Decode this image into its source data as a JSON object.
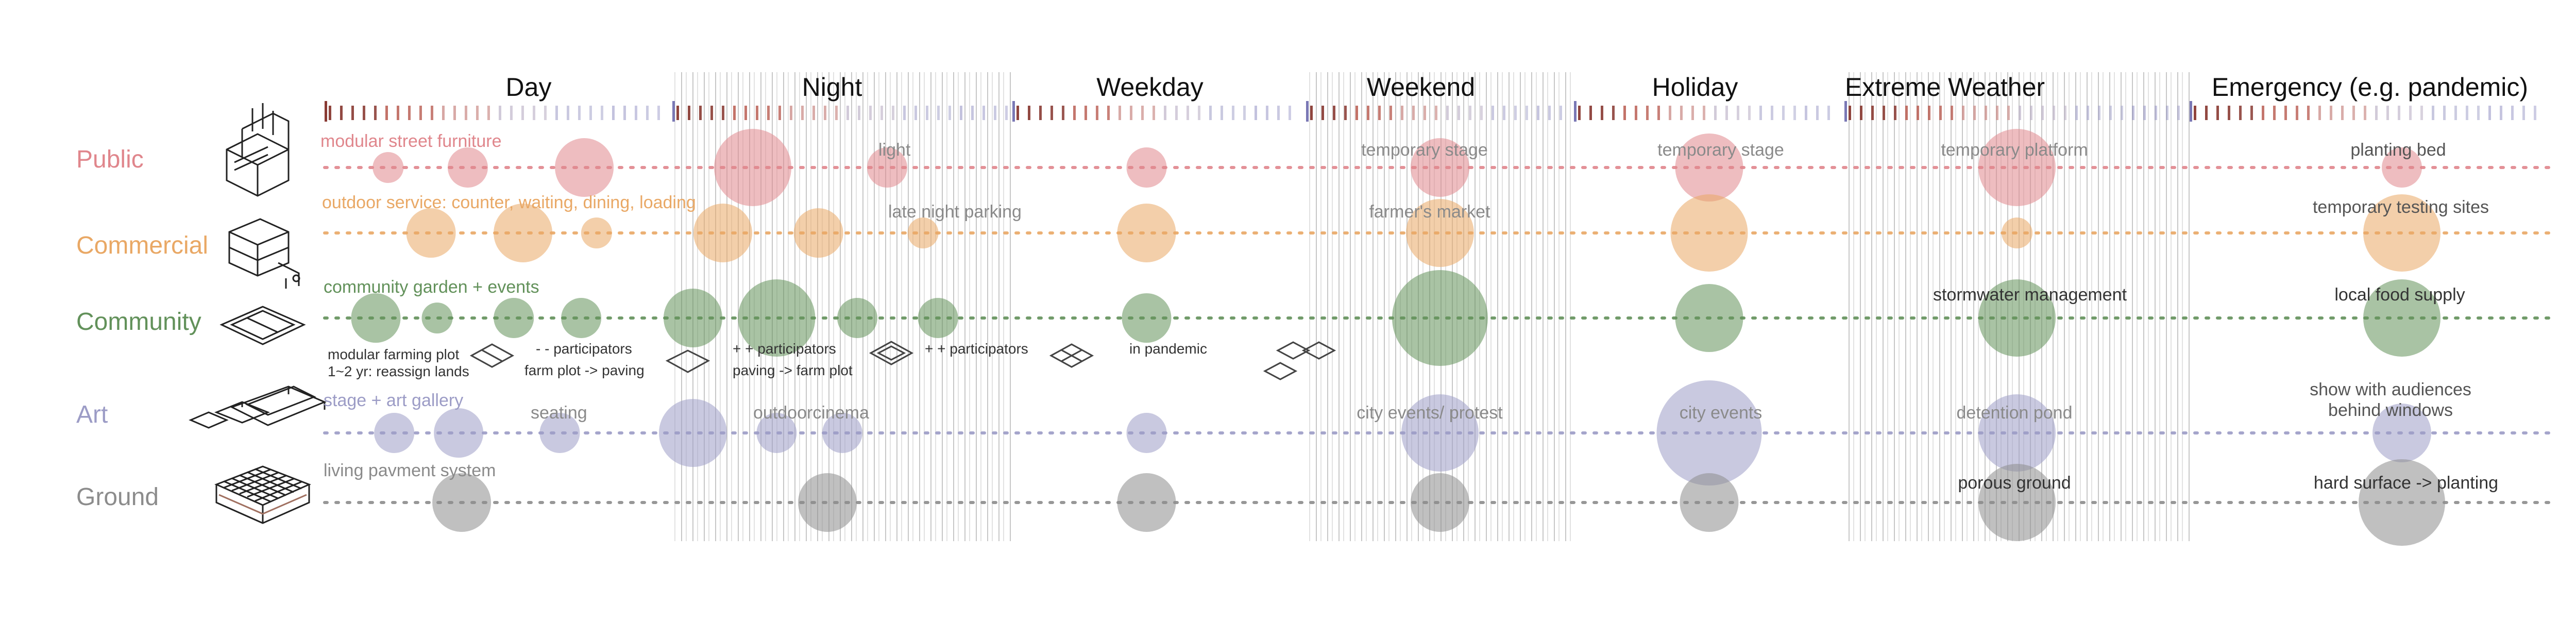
{
  "rows": [
    {
      "id": "public",
      "label": "Public",
      "color": "#e0868c"
    },
    {
      "id": "commercial",
      "label": "Commercial",
      "color": "#e9a865"
    },
    {
      "id": "community",
      "label": "Community",
      "color": "#62915a"
    },
    {
      "id": "art",
      "label": "Art",
      "color": "#9c9cc6"
    },
    {
      "id": "ground",
      "label": "Ground",
      "color": "#8c8c8c"
    }
  ],
  "periods": [
    {
      "id": "day",
      "label": "Day"
    },
    {
      "id": "night",
      "label": "Night"
    },
    {
      "id": "weekday",
      "label": "Weekday"
    },
    {
      "id": "weekend",
      "label": "Weekend"
    },
    {
      "id": "holiday",
      "label": "Holiday"
    },
    {
      "id": "extreme",
      "label": "Extreme Weather"
    },
    {
      "id": "emergency",
      "label": "Emergency (e.g. pandemic)"
    }
  ],
  "annotations": {
    "public_day": "modular street furniture",
    "public_night": "light",
    "public_weekend": "temporary stage",
    "public_holiday": "temporary stage",
    "public_extreme": "temporary platform",
    "public_emergency": "planting bed",
    "commercial_day": "outdoor service: counter, waiting, dining, loading",
    "commercial_night": "late night parking",
    "commercial_weekend": "farmer's market",
    "commercial_emergency": "temporary testing sites",
    "community_day": "community garden + events",
    "community_extreme": "stormwater management",
    "community_emergency": "local food supply",
    "art_day": "stage + art gallery",
    "art_seating": "seating",
    "art_night": "outdoorcinema",
    "art_weekend": "city events/ protest",
    "art_holiday": "city events",
    "art_extreme": "detention pond",
    "art_emergency_1": "show with audiences",
    "art_emergency_2": "behind windows",
    "ground_day": "living pavment system",
    "ground_extreme": "porous ground",
    "ground_emergency": "hard surface -> planting"
  },
  "plot_notes": {
    "plot_1a": "modular farming plot",
    "plot_1b": "1~2 yr: reassign lands",
    "plot_2a": "- - participators",
    "plot_2b": "farm plot -> paving",
    "plot_3a": "+ + participators",
    "plot_3b": "paving -> farm plot",
    "plot_4": "+ + participators",
    "plot_5": "in pandemic"
  },
  "chart_data": {
    "type": "scatter",
    "x_categories": [
      "Day",
      "Night",
      "Weekday",
      "Weekend",
      "Holiday",
      "Extreme Weather",
      "Emergency (e.g. pandemic)"
    ],
    "y_categories": [
      "Public",
      "Commercial",
      "Community",
      "Art",
      "Ground"
    ],
    "series": [
      {
        "name": "Public",
        "points": [
          {
            "period": "Day",
            "pos": 0.14,
            "size": 2
          },
          {
            "period": "Day",
            "pos": 0.4,
            "size": 3
          },
          {
            "period": "Day",
            "pos": 0.78,
            "size": 5
          },
          {
            "period": "Night",
            "pos": 0.2,
            "size": 7
          },
          {
            "period": "Night",
            "pos": 0.65,
            "size": 3
          },
          {
            "period": "Weekday",
            "pos": 0.45,
            "size": 3
          },
          {
            "period": "Weekend",
            "pos": 0.5,
            "size": 5
          },
          {
            "period": "Holiday",
            "pos": 0.5,
            "size": 6
          },
          {
            "period": "Extreme Weather",
            "pos": 0.5,
            "size": 7
          },
          {
            "period": "Emergency (e.g. pandemic)",
            "pos": 0.6,
            "size": 3
          }
        ]
      },
      {
        "name": "Commercial",
        "points": [
          {
            "period": "Day",
            "pos": 0.28,
            "size": 4
          },
          {
            "period": "Day",
            "pos": 0.58,
            "size": 5
          },
          {
            "period": "Day",
            "pos": 0.82,
            "size": 2
          },
          {
            "period": "Night",
            "pos": 0.1,
            "size": 5
          },
          {
            "period": "Night",
            "pos": 0.42,
            "size": 4
          },
          {
            "period": "Night",
            "pos": 0.77,
            "size": 2
          },
          {
            "period": "Weekday",
            "pos": 0.45,
            "size": 5
          },
          {
            "period": "Weekend",
            "pos": 0.5,
            "size": 6
          },
          {
            "period": "Holiday",
            "pos": 0.5,
            "size": 7
          },
          {
            "period": "Extreme Weather",
            "pos": 0.5,
            "size": 2
          },
          {
            "period": "Emergency (e.g. pandemic)",
            "pos": 0.6,
            "size": 7
          }
        ]
      },
      {
        "name": "Community",
        "points": [
          {
            "period": "Day",
            "pos": 0.1,
            "size": 4
          },
          {
            "period": "Day",
            "pos": 0.3,
            "size": 2
          },
          {
            "period": "Day",
            "pos": 0.55,
            "size": 3
          },
          {
            "period": "Day",
            "pos": 0.77,
            "size": 3
          },
          {
            "period": "Night",
            "pos": 0.0,
            "size": 5
          },
          {
            "period": "Night",
            "pos": 0.28,
            "size": 7
          },
          {
            "period": "Night",
            "pos": 0.55,
            "size": 3
          },
          {
            "period": "Night",
            "pos": 0.82,
            "size": 3
          },
          {
            "period": "Weekday",
            "pos": 0.45,
            "size": 4
          },
          {
            "period": "Weekend",
            "pos": 0.5,
            "size": 9
          },
          {
            "period": "Holiday",
            "pos": 0.5,
            "size": 6
          },
          {
            "period": "Extreme Weather",
            "pos": 0.5,
            "size": 7
          },
          {
            "period": "Emergency (e.g. pandemic)",
            "pos": 0.6,
            "size": 7
          }
        ]
      },
      {
        "name": "Art",
        "points": [
          {
            "period": "Day",
            "pos": 0.16,
            "size": 3
          },
          {
            "period": "Day",
            "pos": 0.37,
            "size": 4
          },
          {
            "period": "Day",
            "pos": 0.7,
            "size": 3
          },
          {
            "period": "Night",
            "pos": 0.0,
            "size": 6
          },
          {
            "period": "Night",
            "pos": 0.28,
            "size": 3
          },
          {
            "period": "Night",
            "pos": 0.5,
            "size": 3
          },
          {
            "period": "Weekday",
            "pos": 0.45,
            "size": 3
          },
          {
            "period": "Weekend",
            "pos": 0.5,
            "size": 7
          },
          {
            "period": "Holiday",
            "pos": 0.5,
            "size": 10
          },
          {
            "period": "Extreme Weather",
            "pos": 0.5,
            "size": 7
          },
          {
            "period": "Emergency (e.g. pandemic)",
            "pos": 0.6,
            "size": 5
          }
        ]
      },
      {
        "name": "Ground",
        "points": [
          {
            "period": "Day",
            "pos": 0.38,
            "size": 5
          },
          {
            "period": "Night",
            "pos": 0.45,
            "size": 5
          },
          {
            "period": "Weekday",
            "pos": 0.45,
            "size": 5
          },
          {
            "period": "Weekend",
            "pos": 0.5,
            "size": 5
          },
          {
            "period": "Holiday",
            "pos": 0.5,
            "size": 5
          },
          {
            "period": "Extreme Weather",
            "pos": 0.5,
            "size": 7
          },
          {
            "period": "Emergency (e.g. pandemic)",
            "pos": 0.6,
            "size": 8
          }
        ]
      }
    ]
  }
}
